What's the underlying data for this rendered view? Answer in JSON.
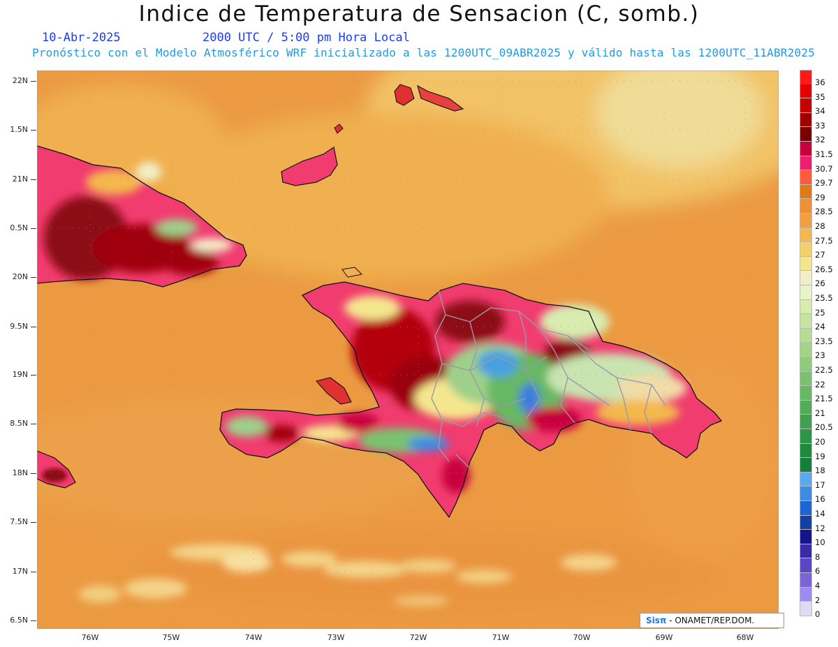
{
  "title": "Indice de Temperatura de Sensacion (C, somb.)",
  "date": "10-Abr-2025",
  "time": "2000 UTC / 5:00 pm Hora Local",
  "subtitle": "Pronóstico con el Modelo Atmosférico WRF inicializado a las 1200UTC_09ABR2025 y válido hasta las  1200UTC_11ABR2025",
  "lat_labels": [
    "22N",
    "1.5N",
    "21N",
    "0.5N",
    "20N",
    "9.5N",
    "19N",
    "8.5N",
    "18N",
    "7.5N",
    "17N",
    "6.5N"
  ],
  "lon_labels": [
    "76W",
    "75W",
    "74W",
    "73W",
    "72W",
    "71W",
    "70W",
    "69W",
    "68W"
  ],
  "colorbar": {
    "labels": [
      "36",
      "35",
      "34",
      "33",
      "32",
      "31.5",
      "30.7",
      "29.7",
      "29",
      "28.5",
      "28",
      "27.5",
      "27",
      "26.5",
      "26",
      "25.5",
      "25",
      "24",
      "23.5",
      "23",
      "22.5",
      "22",
      "21.5",
      "21",
      "20.5",
      "20",
      "19",
      "18",
      "17",
      "16",
      "14",
      "12",
      "10",
      "8",
      "6",
      "4",
      "2",
      "0"
    ],
    "colors": [
      "#ff1a1a",
      "#e60000",
      "#c80000",
      "#a00000",
      "#7a0000",
      "#c8003c",
      "#f01e6e",
      "#ff5a3c",
      "#e07a14",
      "#ef9132",
      "#f0a040",
      "#f4b84e",
      "#f2d06a",
      "#f4e68e",
      "#f2eec8",
      "#e8f4c8",
      "#d8ecb0",
      "#c6e4a0",
      "#b6dc94",
      "#a2d488",
      "#8ecc7c",
      "#7ac270",
      "#66b864",
      "#54ac58",
      "#40a050",
      "#2e9446",
      "#1f8a3e",
      "#12803a",
      "#5aa8f0",
      "#3c8ce6",
      "#1e64d2",
      "#1440a0",
      "#14148c",
      "#3a2aa8",
      "#5a46c0",
      "#7a64d8",
      "#9a8cf0",
      "#dcdcf4"
    ]
  },
  "credit": {
    "brand": "Sisπ",
    "text": " - ONAMET/REP.DOM."
  }
}
